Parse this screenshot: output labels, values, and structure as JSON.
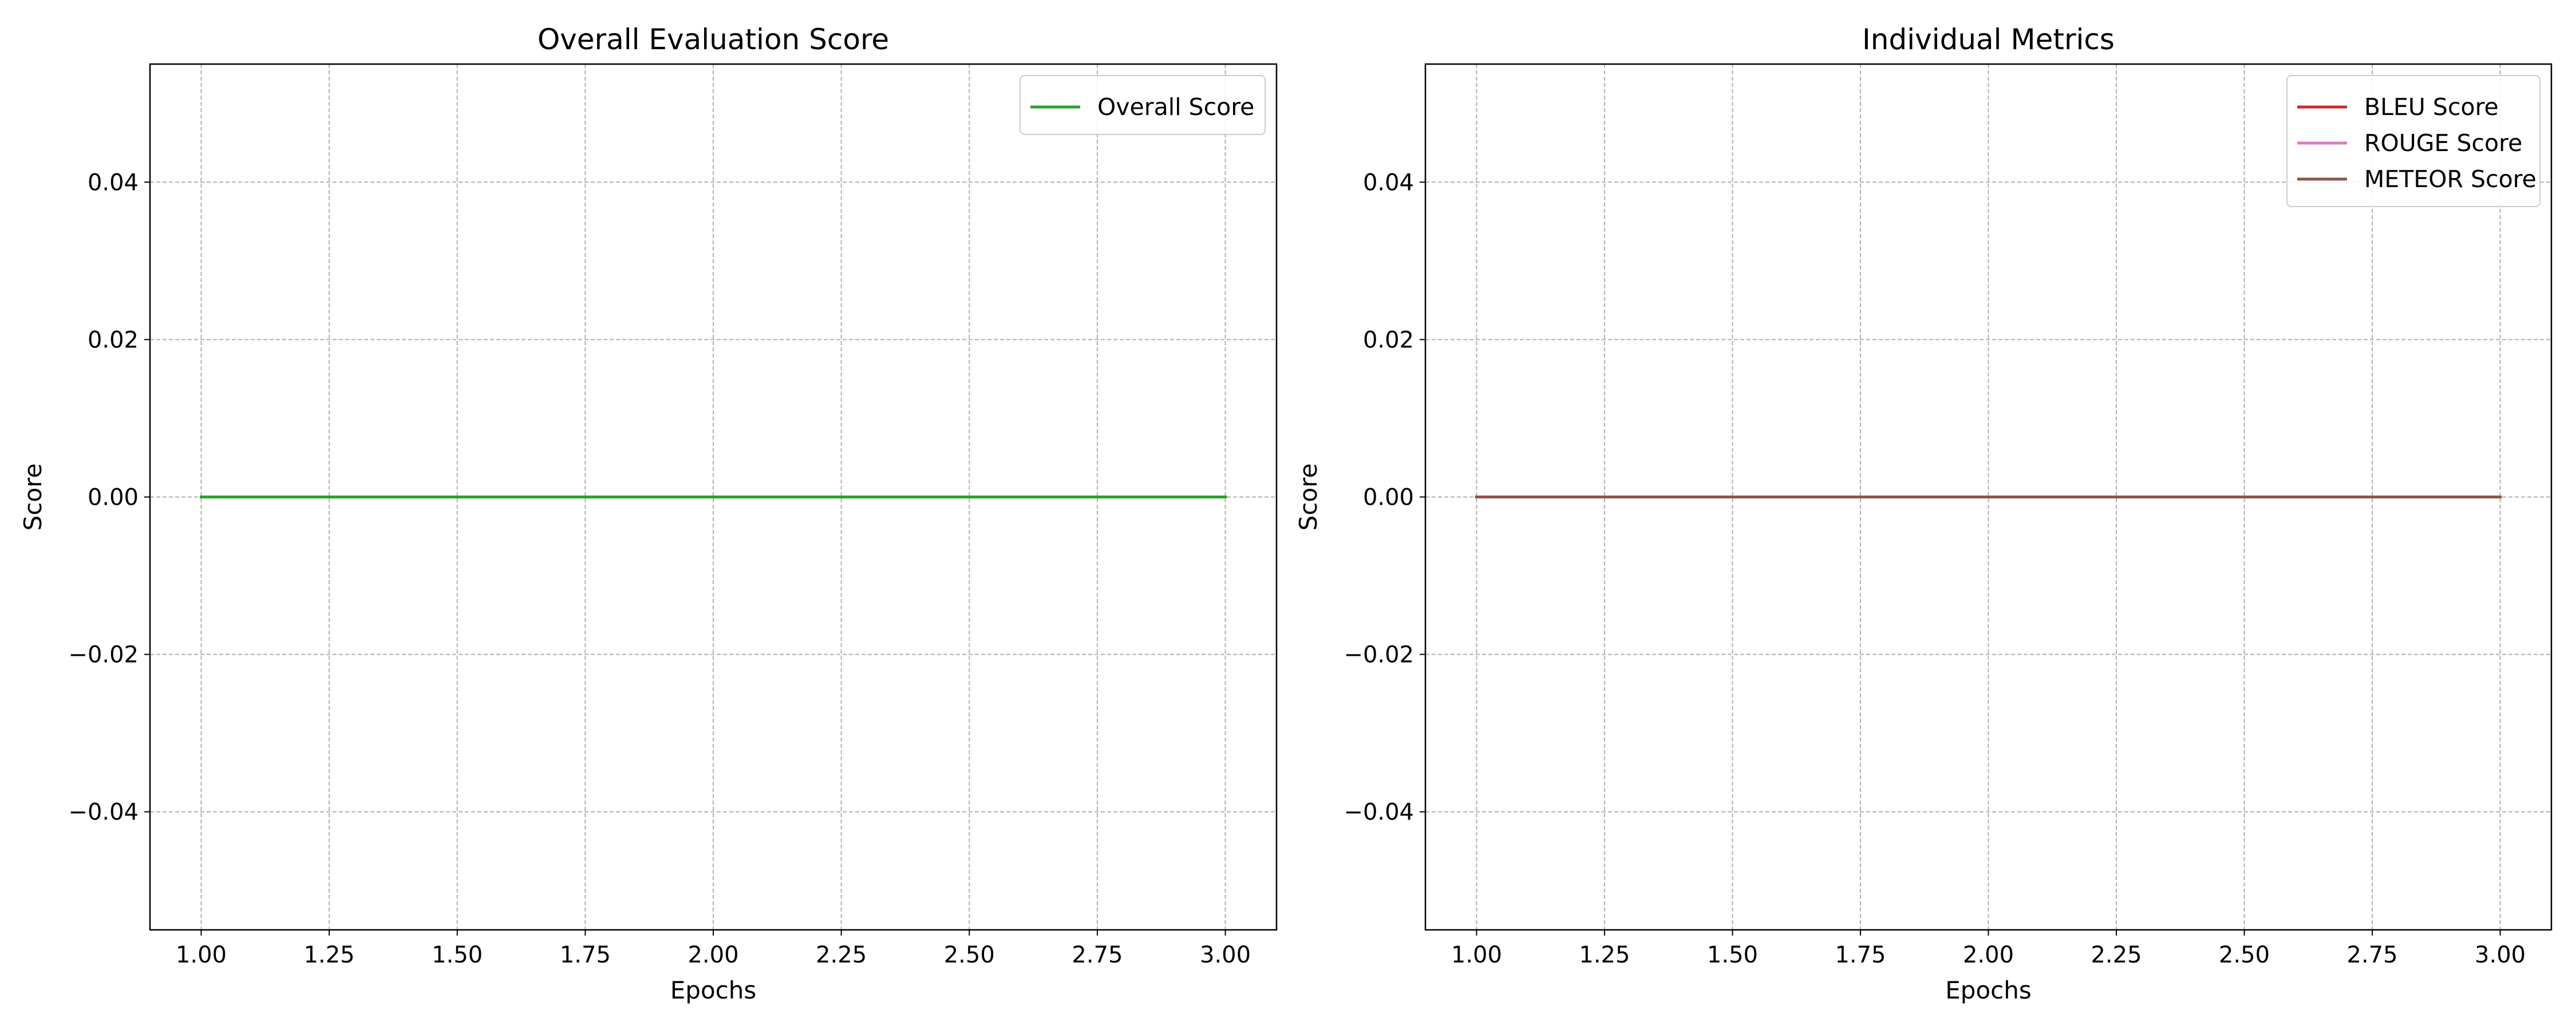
{
  "chart_data": [
    {
      "type": "line",
      "title": "Overall Evaluation Score",
      "xlabel": "Epochs",
      "ylabel": "Score",
      "x": [
        1,
        2,
        3
      ],
      "xlim": [
        0.9,
        3.1
      ],
      "ylim": [
        -0.055,
        0.055
      ],
      "xticks": [
        "1.00",
        "1.25",
        "1.50",
        "1.75",
        "2.00",
        "2.25",
        "2.50",
        "2.75",
        "3.00"
      ],
      "yticks": [
        "−0.04",
        "−0.02",
        "0.00",
        "0.02",
        "0.04"
      ],
      "grid": true,
      "legend_position": "top-right",
      "series": [
        {
          "name": "Overall Score",
          "color": "#2ca02c",
          "values": [
            0,
            0,
            0
          ]
        }
      ]
    },
    {
      "type": "line",
      "title": "Individual Metrics",
      "xlabel": "Epochs",
      "ylabel": "Score",
      "x": [
        1,
        2,
        3
      ],
      "xlim": [
        0.9,
        3.1
      ],
      "ylim": [
        -0.055,
        0.055
      ],
      "xticks": [
        "1.00",
        "1.25",
        "1.50",
        "1.75",
        "2.00",
        "2.25",
        "2.50",
        "2.75",
        "3.00"
      ],
      "yticks": [
        "−0.04",
        "−0.02",
        "0.00",
        "0.02",
        "0.04"
      ],
      "grid": true,
      "legend_position": "top-right",
      "series": [
        {
          "name": "BLEU Score",
          "color": "#d62728",
          "values": [
            0,
            0,
            0
          ]
        },
        {
          "name": "ROUGE Score",
          "color": "#e377c2",
          "values": [
            0,
            0,
            0
          ]
        },
        {
          "name": "METEOR Score",
          "color": "#8c564b",
          "values": [
            0,
            0,
            0
          ]
        }
      ]
    }
  ]
}
